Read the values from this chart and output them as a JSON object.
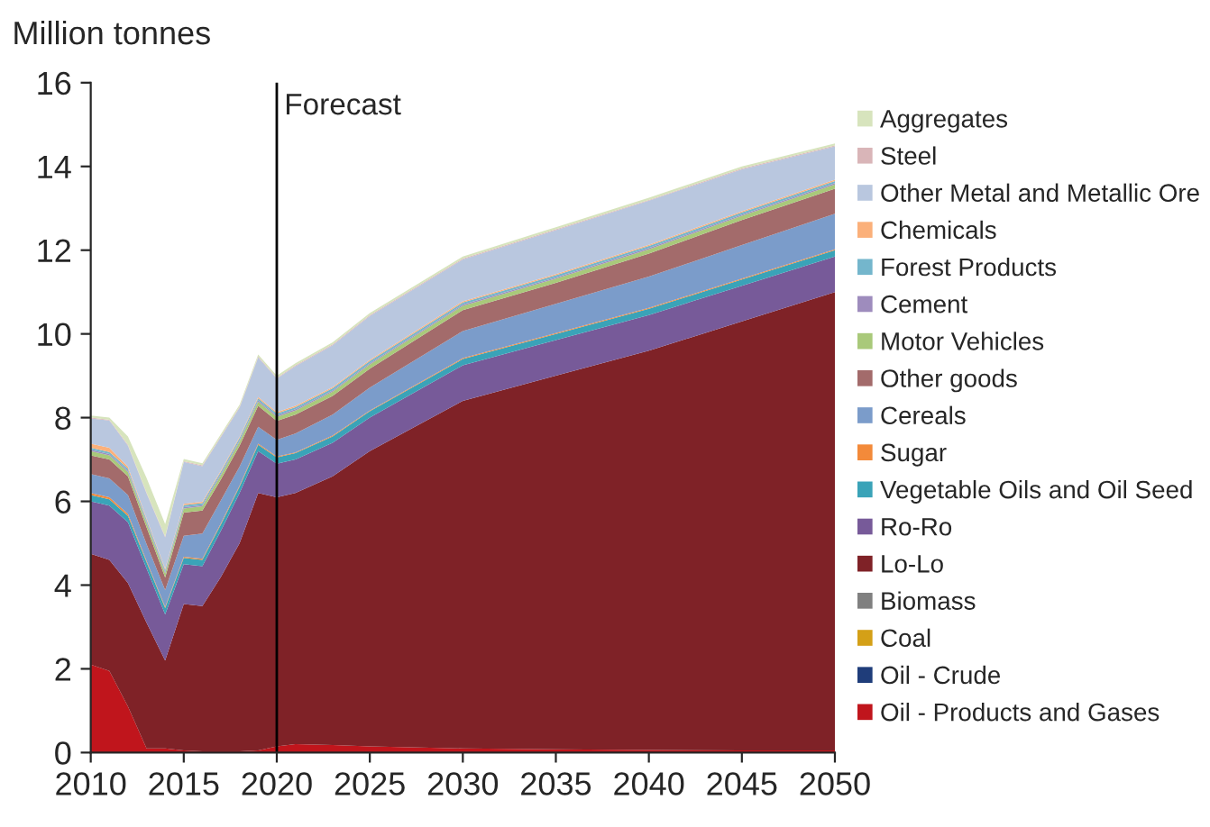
{
  "chart_data": {
    "type": "area",
    "stacked": true,
    "ylabel": "Million tonnes",
    "x": [
      2010,
      2011,
      2012,
      2013,
      2014,
      2015,
      2016,
      2017,
      2018,
      2019,
      2020,
      2021,
      2023,
      2025,
      2030,
      2035,
      2040,
      2045,
      2050
    ],
    "xlim": [
      2010,
      2050
    ],
    "xticks": [
      2010,
      2015,
      2020,
      2025,
      2030,
      2035,
      2040,
      2045,
      2050
    ],
    "ylim": [
      0,
      16
    ],
    "yticks": [
      0,
      2,
      4,
      6,
      8,
      10,
      12,
      14,
      16
    ],
    "grid": false,
    "legend": "right",
    "ref_lines": [
      {
        "axis": "x",
        "value": 2020,
        "label": "Forecast",
        "color": "#000000"
      }
    ],
    "series": [
      {
        "name": "Oil - Products and Gases",
        "color": "#c0151c",
        "values": [
          2.1,
          1.95,
          1.1,
          0.1,
          0.1,
          0.05,
          0.03,
          0.03,
          0.03,
          0.05,
          0.15,
          0.2,
          0.18,
          0.15,
          0.1,
          0.08,
          0.06,
          0.05,
          0.05
        ]
      },
      {
        "name": "Oil - Crude",
        "color": "#1f3d7a",
        "values": [
          null,
          null,
          null,
          null,
          null,
          null,
          null,
          null,
          null,
          null,
          null,
          null,
          null,
          null,
          null,
          null,
          null,
          null,
          null
        ]
      },
      {
        "name": "Coal",
        "color": "#d4a017",
        "values": [
          null,
          null,
          null,
          null,
          null,
          null,
          null,
          null,
          null,
          null,
          null,
          null,
          null,
          null,
          null,
          null,
          null,
          null,
          null
        ]
      },
      {
        "name": "Biomass",
        "color": "#808080",
        "values": [
          null,
          null,
          null,
          null,
          null,
          null,
          null,
          null,
          null,
          null,
          null,
          null,
          null,
          null,
          null,
          null,
          null,
          null,
          null
        ]
      },
      {
        "name": "Lo-Lo",
        "color": "#7f2227",
        "values": [
          2.65,
          2.65,
          2.95,
          3.0,
          2.1,
          3.5,
          3.47,
          4.17,
          4.97,
          6.15,
          5.95,
          6.0,
          6.42,
          7.05,
          8.3,
          8.92,
          9.54,
          10.25,
          10.95
        ]
      },
      {
        "name": "Ro-Ro",
        "color": "#775a99",
        "values": [
          1.25,
          1.3,
          1.45,
          1.3,
          1.1,
          0.95,
          0.95,
          1.1,
          1.2,
          1.0,
          0.8,
          0.8,
          0.8,
          0.8,
          0.85,
          0.85,
          0.85,
          0.85,
          0.85
        ]
      },
      {
        "name": "Vegetable Oils and Oil Seed",
        "color": "#3aa3b8",
        "values": [
          0.15,
          0.15,
          0.15,
          0.15,
          0.15,
          0.15,
          0.15,
          0.15,
          0.15,
          0.15,
          0.15,
          0.15,
          0.15,
          0.15,
          0.15,
          0.15,
          0.15,
          0.15,
          0.15
        ]
      },
      {
        "name": "Sugar",
        "color": "#f38a3a",
        "values": [
          0.05,
          0.05,
          0.05,
          0.03,
          0.03,
          0.03,
          0.03,
          0.03,
          0.03,
          0.03,
          0.02,
          0.02,
          0.02,
          0.02,
          0.02,
          0.02,
          0.02,
          0.02,
          0.02
        ]
      },
      {
        "name": "Cereals",
        "color": "#7b9cca",
        "values": [
          0.45,
          0.45,
          0.45,
          0.4,
          0.4,
          0.5,
          0.6,
          0.55,
          0.45,
          0.4,
          0.4,
          0.45,
          0.5,
          0.55,
          0.65,
          0.7,
          0.75,
          0.8,
          0.85
        ]
      },
      {
        "name": "Other goods",
        "color": "#a36b6b",
        "values": [
          0.45,
          0.45,
          0.45,
          0.4,
          0.3,
          0.55,
          0.55,
          0.5,
          0.5,
          0.5,
          0.45,
          0.45,
          0.45,
          0.45,
          0.5,
          0.5,
          0.55,
          0.6,
          0.6
        ]
      },
      {
        "name": "Motor Vehicles",
        "color": "#a9c97a",
        "values": [
          0.1,
          0.1,
          0.1,
          0.1,
          0.1,
          0.1,
          0.1,
          0.1,
          0.1,
          0.1,
          0.1,
          0.1,
          0.1,
          0.1,
          0.1,
          0.1,
          0.1,
          0.1,
          0.1
        ]
      },
      {
        "name": "Cement",
        "color": "#9e8cbd",
        "values": [
          0.03,
          0.03,
          0.03,
          0.03,
          0.03,
          0.03,
          0.03,
          0.03,
          0.03,
          0.03,
          0.03,
          0.03,
          0.03,
          0.03,
          0.03,
          0.03,
          0.03,
          0.03,
          0.03
        ]
      },
      {
        "name": "Forest Products",
        "color": "#74b6cc",
        "values": [
          0.05,
          0.05,
          0.05,
          0.05,
          0.05,
          0.05,
          0.05,
          0.05,
          0.05,
          0.05,
          0.05,
          0.05,
          0.05,
          0.05,
          0.05,
          0.05,
          0.05,
          0.05,
          0.05
        ]
      },
      {
        "name": "Chemicals",
        "color": "#fbb07a",
        "values": [
          0.1,
          0.1,
          0.05,
          0.03,
          0.03,
          0.03,
          0.03,
          0.03,
          0.03,
          0.03,
          0.03,
          0.03,
          0.03,
          0.03,
          0.03,
          0.03,
          0.03,
          0.03,
          0.03
        ]
      },
      {
        "name": "Other Metal and Metallic Ore",
        "color": "#b9c7df",
        "values": [
          0.6,
          0.65,
          0.5,
          0.6,
          0.75,
          1.0,
          0.85,
          0.8,
          0.7,
          0.95,
          0.8,
          0.95,
          1.0,
          1.05,
          1.0,
          1.05,
          1.05,
          1.0,
          0.8
        ]
      },
      {
        "name": "Steel",
        "color": "#d9b5b8",
        "values": [
          0.02,
          0.02,
          0.02,
          0.02,
          0.02,
          0.02,
          0.02,
          0.02,
          0.02,
          0.02,
          0.02,
          0.02,
          0.02,
          0.02,
          0.02,
          0.02,
          0.02,
          0.02,
          0.02
        ]
      },
      {
        "name": "Aggregates",
        "color": "#d7e4bd",
        "values": [
          0.05,
          0.05,
          0.2,
          0.35,
          0.3,
          0.05,
          0.05,
          0.05,
          0.05,
          0.05,
          0.05,
          0.05,
          0.05,
          0.05,
          0.05,
          0.05,
          0.05,
          0.05,
          0.05
        ]
      }
    ]
  }
}
